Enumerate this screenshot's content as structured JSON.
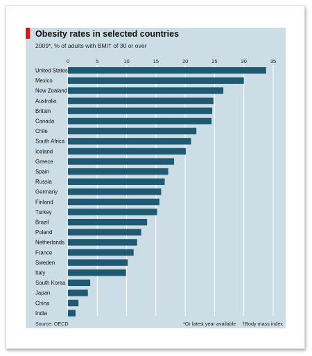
{
  "header": {
    "title": "Obesity rates in selected countries",
    "subtitle": "2009*, % of adults with BMI† of 30 or over"
  },
  "footer": {
    "source": "Source: OECD",
    "note_year": "*Or latest year available",
    "note_bmi": "†Body mass index"
  },
  "colors": {
    "bar": "#1f5a72",
    "panel": "#cddde6",
    "grid": "#ffffff",
    "accent": "#e3120b"
  },
  "chart_data": {
    "type": "bar",
    "orientation": "horizontal",
    "categories": [
      "United States",
      "Mexico",
      "New Zealand",
      "Australia",
      "Britain",
      "Canada",
      "Chile",
      "South Africa",
      "Iceland",
      "Greece",
      "Spain",
      "Russia",
      "Germany",
      "Finland",
      "Turkey",
      "Brazil",
      "Poland",
      "Netherlands",
      "France",
      "Sweden",
      "Italy",
      "South Korea",
      "Japan",
      "China",
      "India"
    ],
    "values": [
      33.8,
      30.0,
      26.5,
      24.8,
      24.6,
      24.5,
      21.9,
      21.0,
      20.1,
      18.1,
      17.1,
      16.5,
      15.9,
      15.6,
      15.2,
      13.5,
      12.5,
      11.8,
      11.2,
      10.2,
      9.9,
      3.8,
      3.4,
      1.8,
      1.3
    ],
    "xticks": [
      0,
      5,
      10,
      15,
      20,
      25,
      30,
      35
    ],
    "xlim": [
      0,
      35
    ],
    "grid": true,
    "tick_position": "top"
  }
}
